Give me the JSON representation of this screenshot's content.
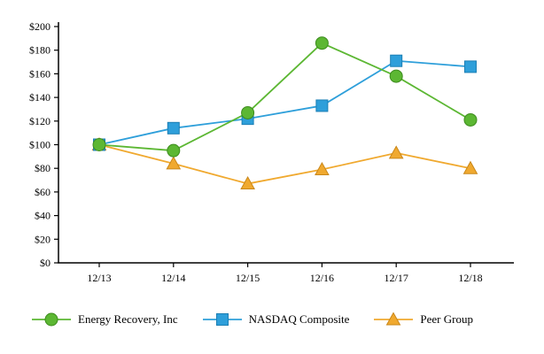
{
  "chart_data": {
    "type": "line",
    "title": "",
    "xlabel": "",
    "ylabel": "",
    "categories": [
      "12/13",
      "12/14",
      "12/15",
      "12/16",
      "12/17",
      "12/18"
    ],
    "series": [
      {
        "name": "Energy Recovery, Inc",
        "marker": "circle",
        "color": "#5cb733",
        "stroke": "#3d8c1e",
        "values": [
          100,
          95,
          127,
          186,
          158,
          121
        ]
      },
      {
        "name": "NASDAQ Composite",
        "marker": "square",
        "color": "#2e9fda",
        "stroke": "#1c7fb4",
        "values": [
          100,
          114,
          122,
          133,
          171,
          166
        ]
      },
      {
        "name": "Peer Group",
        "marker": "triangle",
        "color": "#f0a92f",
        "stroke": "#c9871a",
        "values": [
          100,
          84,
          67,
          79,
          93,
          80
        ]
      }
    ],
    "ylim": [
      0,
      200
    ],
    "ytick_step": 20,
    "ytick_labels": [
      "$0",
      "$20",
      "$40",
      "$60",
      "$80",
      "$100",
      "$120",
      "$140",
      "$160",
      "$180",
      "$200"
    ],
    "grid": false,
    "legend_position": "bottom",
    "axis_color": "#000000",
    "background_color": "#ffffff"
  }
}
